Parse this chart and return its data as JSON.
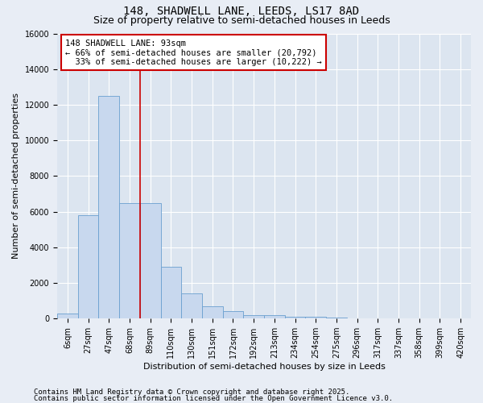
{
  "title_line1": "148, SHADWELL LANE, LEEDS, LS17 8AD",
  "title_line2": "Size of property relative to semi-detached houses in Leeds",
  "xlabel": "Distribution of semi-detached houses by size in Leeds",
  "ylabel": "Number of semi-detached properties",
  "categories": [
    "6sqm",
    "27sqm",
    "47sqm",
    "68sqm",
    "89sqm",
    "110sqm",
    "130sqm",
    "151sqm",
    "172sqm",
    "192sqm",
    "213sqm",
    "234sqm",
    "254sqm",
    "275sqm",
    "296sqm",
    "317sqm",
    "337sqm",
    "358sqm",
    "399sqm",
    "420sqm"
  ],
  "values": [
    300,
    5800,
    12500,
    6500,
    6500,
    2900,
    1400,
    700,
    400,
    200,
    200,
    100,
    100,
    50,
    30,
    10,
    5,
    3,
    2,
    1
  ],
  "bar_color": "#c8d8ee",
  "bar_edge_color": "#6a9fd0",
  "red_line_x": 3.5,
  "property_sqm": 93,
  "pct_smaller": 66,
  "count_smaller": 20792,
  "pct_larger": 33,
  "count_larger": 10222,
  "annotation_label": "148 SHADWELL LANE: 93sqm",
  "red_line_color": "#cc0000",
  "annotation_box_facecolor": "#ffffff",
  "annotation_box_edgecolor": "#cc0000",
  "ylim": [
    0,
    16000
  ],
  "yticks": [
    0,
    2000,
    4000,
    6000,
    8000,
    10000,
    12000,
    14000,
    16000
  ],
  "footer_line1": "Contains HM Land Registry data © Crown copyright and database right 2025.",
  "footer_line2": "Contains public sector information licensed under the Open Government Licence v3.0.",
  "background_color": "#e8edf5",
  "plot_bg_color": "#dce5f0",
  "grid_color": "#ffffff",
  "title_fontsize": 10,
  "subtitle_fontsize": 9,
  "axis_label_fontsize": 8,
  "tick_fontsize": 7,
  "footer_fontsize": 6.5,
  "annotation_fontsize": 7.5
}
